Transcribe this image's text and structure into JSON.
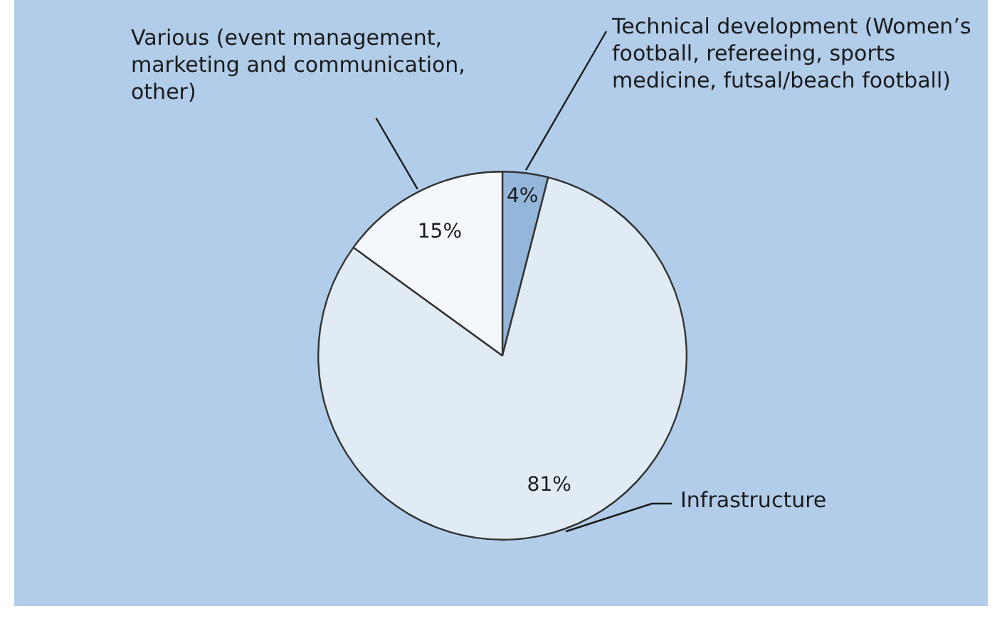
{
  "chart_data": {
    "type": "pie",
    "categories": [
      "Technical development (Women’s football, refereeing, sports medicine, futsal/beach football)",
      "Infrastructure",
      "Various (event management, marketing and communication, other)"
    ],
    "values": [
      4,
      81,
      15
    ],
    "colors": [
      "#94b6da",
      "#e1ebf4",
      "#f4f8fc"
    ],
    "value_labels": [
      "4%",
      "81%",
      "15%"
    ],
    "legend": false
  }
}
